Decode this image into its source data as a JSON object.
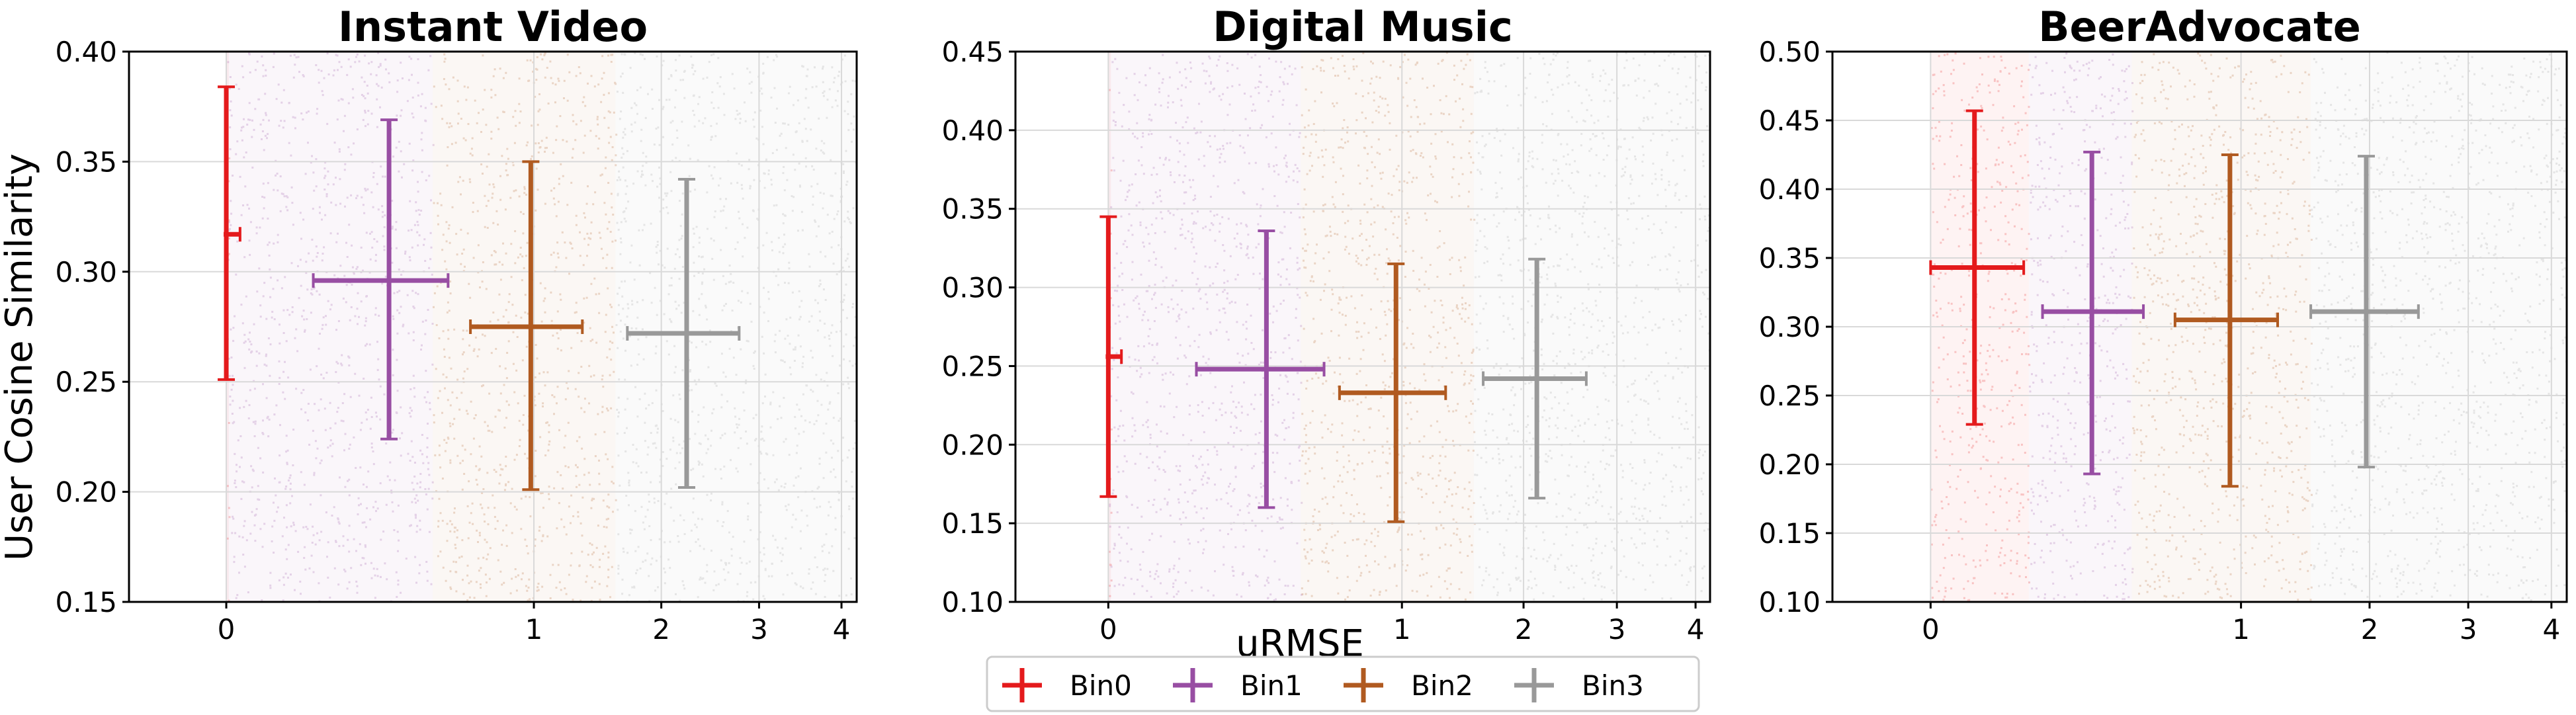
{
  "figure": {
    "ylabel": "User Cosine Similarity",
    "xlabel": "uRMSE",
    "legend": {
      "placement": "bottom-center",
      "entries": [
        {
          "name": "Bin0",
          "color": "#e41a1c"
        },
        {
          "name": "Bin1",
          "color": "#984ea3"
        },
        {
          "name": "Bin2",
          "color": "#b05a20"
        },
        {
          "name": "Bin3",
          "color": "#999999"
        }
      ]
    }
  },
  "chart_data": [
    {
      "type": "scatter",
      "title": "Instant Video",
      "xlabel": "",
      "ylabel": "User Cosine Similarity",
      "x_scale": "sqrt",
      "xlim": [
        -0.1,
        4.2
      ],
      "xticks": [
        "0",
        "1",
        "2",
        "3",
        "4"
      ],
      "ylim": [
        0.15,
        0.4
      ],
      "yticks": [
        "0.15",
        "0.20",
        "0.25",
        "0.30",
        "0.35",
        "0.40"
      ],
      "grid": true,
      "series": [
        {
          "name": "Bin0",
          "x": 0.0,
          "y": 0.317,
          "xerr_low": 0.0,
          "xerr_high": 0.002,
          "yerr_low": 0.066,
          "yerr_high": 0.067,
          "cloud_x": [
            0,
            0.0
          ],
          "cloud_y": [
            0.15,
            0.4
          ]
        },
        {
          "name": "Bin1",
          "x": 0.28,
          "y": 0.296,
          "xerr_low": 0.2,
          "xerr_high": 0.24,
          "yerr_low": 0.072,
          "yerr_high": 0.073,
          "cloud_x": [
            0,
            0.45
          ],
          "cloud_y": [
            0.15,
            0.4
          ]
        },
        {
          "name": "Bin2",
          "x": 0.98,
          "y": 0.275,
          "xerr_low": 0.35,
          "xerr_high": 0.36,
          "yerr_low": 0.074,
          "yerr_high": 0.075,
          "cloud_x": [
            0.45,
            1.6
          ],
          "cloud_y": [
            0.15,
            0.4
          ]
        },
        {
          "name": "Bin3",
          "x": 2.24,
          "y": 0.272,
          "xerr_low": 0.54,
          "xerr_high": 0.54,
          "yerr_low": 0.07,
          "yerr_high": 0.07,
          "cloud_x": [
            1.6,
            4.2
          ],
          "cloud_y": [
            0.15,
            0.4
          ]
        }
      ]
    },
    {
      "type": "scatter",
      "title": "Digital Music",
      "xlabel": "uRMSE",
      "ylabel": "",
      "x_scale": "sqrt",
      "xlim": [
        -0.1,
        4.2
      ],
      "xticks": [
        "0",
        "1",
        "2",
        "3",
        "4"
      ],
      "ylim": [
        0.1,
        0.45
      ],
      "yticks": [
        "0.10",
        "0.15",
        "0.20",
        "0.25",
        "0.30",
        "0.35",
        "0.40",
        "0.45"
      ],
      "grid": true,
      "series": [
        {
          "name": "Bin0",
          "x": 0.0,
          "y": 0.256,
          "xerr_low": 0.0,
          "xerr_high": 0.002,
          "yerr_low": 0.089,
          "yerr_high": 0.089,
          "cloud_x": [
            0,
            0.0
          ],
          "cloud_y": [
            0.1,
            0.45
          ]
        },
        {
          "name": "Bin1",
          "x": 0.29,
          "y": 0.248,
          "xerr_low": 0.2,
          "xerr_high": 0.25,
          "yerr_low": 0.088,
          "yerr_high": 0.088,
          "cloud_x": [
            0,
            0.43
          ],
          "cloud_y": [
            0.1,
            0.45
          ]
        },
        {
          "name": "Bin2",
          "x": 0.96,
          "y": 0.233,
          "xerr_low": 0.34,
          "xerr_high": 0.36,
          "yerr_low": 0.082,
          "yerr_high": 0.082,
          "cloud_x": [
            0.43,
            1.55
          ],
          "cloud_y": [
            0.1,
            0.45
          ]
        },
        {
          "name": "Bin3",
          "x": 2.13,
          "y": 0.242,
          "xerr_low": 0.5,
          "xerr_high": 0.52,
          "yerr_low": 0.076,
          "yerr_high": 0.076,
          "cloud_x": [
            1.55,
            4.2
          ],
          "cloud_y": [
            0.1,
            0.45
          ]
        }
      ]
    },
    {
      "type": "scatter",
      "title": "BeerAdvocate",
      "xlabel": "",
      "ylabel": "",
      "x_scale": "sqrt",
      "xlim": [
        -0.1,
        4.2
      ],
      "xticks": [
        "0",
        "1",
        "2",
        "3",
        "4"
      ],
      "ylim": [
        0.1,
        0.5
      ],
      "yticks": [
        "0.10",
        "0.15",
        "0.20",
        "0.25",
        "0.30",
        "0.35",
        "0.40",
        "0.45",
        "0.50"
      ],
      "grid": true,
      "series": [
        {
          "name": "Bin0",
          "x": 0.02,
          "y": 0.343,
          "xerr_low": 0.02,
          "xerr_high": 0.07,
          "yerr_low": 0.114,
          "yerr_high": 0.114,
          "cloud_x": [
            0,
            0.1
          ],
          "cloud_y": [
            0.1,
            0.5
          ]
        },
        {
          "name": "Bin1",
          "x": 0.27,
          "y": 0.311,
          "xerr_low": 0.14,
          "xerr_high": 0.2,
          "yerr_low": 0.118,
          "yerr_high": 0.116,
          "cloud_x": [
            0.1,
            0.42
          ],
          "cloud_y": [
            0.1,
            0.5
          ]
        },
        {
          "name": "Bin2",
          "x": 0.93,
          "y": 0.305,
          "xerr_low": 0.31,
          "xerr_high": 0.32,
          "yerr_low": 0.121,
          "yerr_high": 0.12,
          "cloud_x": [
            0.42,
            1.5
          ],
          "cloud_y": [
            0.1,
            0.5
          ]
        },
        {
          "name": "Bin3",
          "x": 1.97,
          "y": 0.311,
          "xerr_low": 0.47,
          "xerr_high": 0.5,
          "yerr_low": 0.113,
          "yerr_high": 0.113,
          "cloud_x": [
            1.5,
            4.2
          ],
          "cloud_y": [
            0.1,
            0.5
          ]
        }
      ]
    }
  ]
}
